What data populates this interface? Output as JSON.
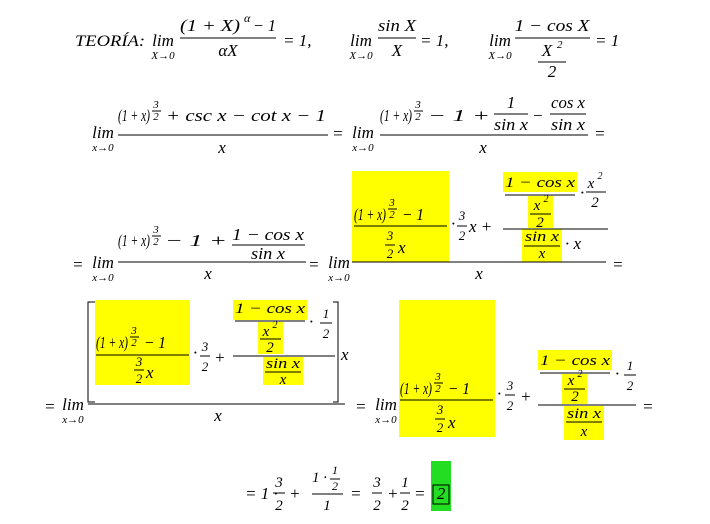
{
  "l1": [
    "TEORÍA:",
    "lim",
    "X→0",
    "(1 + X)",
    "α",
    "− 1",
    "αX",
    "= 1,",
    "lim",
    "X→0",
    "sin X",
    "X",
    "= 1,",
    "lim",
    "X→0",
    "1 − cos X",
    "X",
    "2",
    "2",
    "= 1"
  ],
  "l2": [
    "lim",
    "x→0",
    "(1 + x)",
    "3",
    "2",
    "+ csc x − cot x − 1",
    "x",
    "=",
    "lim",
    "x→0",
    "(1 + x)",
    "3",
    "2",
    "− 1 +",
    "1",
    "sin x",
    "−",
    "cos x",
    "sin x",
    "x",
    "="
  ],
  "l3": [
    "=",
    "lim",
    "x→0",
    "(1 + x)",
    "3",
    "2",
    "− 1 +",
    "1 − cos x",
    "sin x",
    "x",
    "=",
    "lim",
    "x→0",
    "(1 + x)",
    "3",
    "2",
    "− 1",
    "3",
    "2",
    "x",
    "·",
    "3",
    "2",
    "x +",
    "1 − cos x",
    "x",
    "2",
    "2",
    "·",
    "x",
    "2",
    "2",
    "sin x",
    "x",
    "· x",
    "x",
    "="
  ],
  "l4": [
    "=",
    "lim",
    "x→0",
    "(1 + x)",
    "3",
    "2",
    "− 1",
    "3",
    "2",
    "x",
    "·",
    "3",
    "2",
    "+",
    "1 − cos x",
    "x",
    "2",
    "2",
    "·",
    "1",
    "2",
    "sin x",
    "x",
    "x",
    "x",
    "=",
    "lim",
    "x→0",
    "(1 + x)",
    "3",
    "2",
    "− 1",
    "3",
    "2",
    "x",
    "·",
    "3",
    "2",
    "+",
    "1 − cos x",
    "x",
    "2",
    "2",
    "·",
    "1",
    "2",
    "sin x",
    "x",
    "="
  ],
  "l5": [
    "= 1 ·",
    "3",
    "2",
    "+",
    "1 ·",
    "1",
    "2",
    "1",
    "=",
    "3",
    "2",
    "+",
    "1",
    "2",
    "=",
    "2"
  ]
}
